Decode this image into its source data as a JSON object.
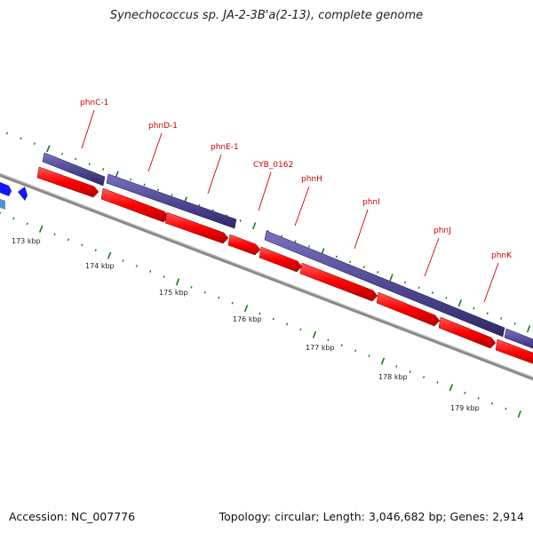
{
  "title": "Synechococcus sp. JA-2-3B'a(2-13), complete genome",
  "footer": {
    "accession": "Accession: NC_007776",
    "topology": "Topology: circular; Length: 3,046,682 bp; Genes: 2,914"
  },
  "colors": {
    "forward_strand": "#524a94",
    "reverse_strand": "#ff0000",
    "backbone": "#8c8c8c",
    "tick": "#1a7a1a",
    "label": "#cc0000",
    "other_genes_dark": "#0000ff",
    "other_genes_light": "#4f94cd"
  },
  "gene_labels": [
    {
      "name": "phnC-1"
    },
    {
      "name": "phnD-1"
    },
    {
      "name": "phnE-1"
    },
    {
      "name": "CYB_0162"
    },
    {
      "name": "phnH"
    },
    {
      "name": "phnI"
    },
    {
      "name": "phnJ"
    },
    {
      "name": "phnK"
    }
  ],
  "scale_labels": [
    "173 kbp",
    "174 kbp",
    "175 kbp",
    "176 kbp",
    "177 kbp",
    "178 kbp",
    "179 kbp"
  ]
}
